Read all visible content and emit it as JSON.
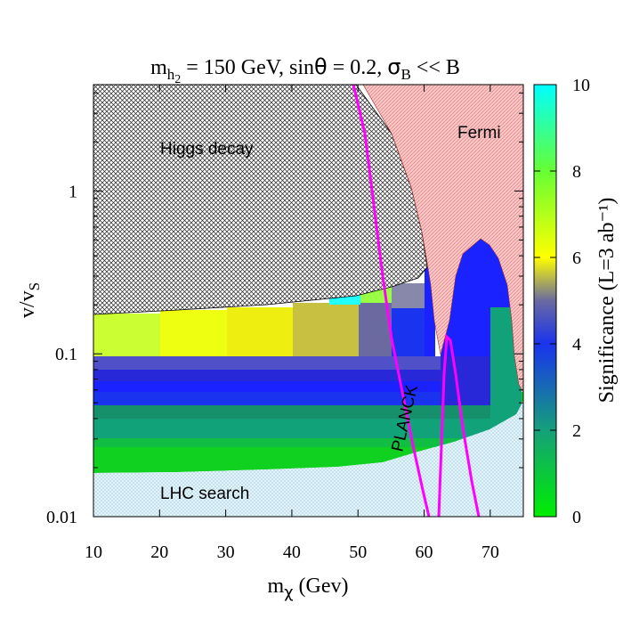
{
  "chart_data": {
    "type": "heatmap",
    "title": {
      "parts": [
        {
          "t": "m"
        },
        {
          "t": "h",
          "sub": true
        },
        {
          "t": "2",
          "subsub": true
        },
        {
          "t": " = 150 GeV, sin"
        },
        {
          "t": "θ",
          "sans": true
        },
        {
          "t": " = 0.2, "
        },
        {
          "t": "σ",
          "sans": true
        },
        {
          "t": "B",
          "sub": true
        },
        {
          "t": " << B"
        }
      ]
    },
    "xlabel": {
      "main": "m",
      "sub": "χ",
      "rest": " (Gev)"
    },
    "ylabel": {
      "main": "v/v",
      "sub": "S"
    },
    "colorbar_label": "Significance (L=3 ab⁻¹)",
    "x_ticks": [
      10,
      20,
      30,
      40,
      50,
      60,
      70
    ],
    "x_tick_labels": [
      "10",
      "20",
      "30",
      "40",
      "50",
      "60",
      "70"
    ],
    "y_ticks": [
      0.01,
      0.1,
      1
    ],
    "y_tick_labels": [
      "0.01",
      "0.1",
      "1"
    ],
    "colorbar_ticks": [
      0,
      2,
      4,
      6,
      8,
      10
    ],
    "colorbar_tick_labels": [
      "0",
      "2",
      "4",
      "6",
      "8",
      "10"
    ],
    "xlim": [
      10,
      75
    ],
    "ylim": [
      0.01,
      4.5
    ],
    "y_scale": "log",
    "color_range": [
      0,
      10
    ],
    "colormap": [
      "#00ee00",
      "#15a07a",
      "#1a33ee",
      "#9a9a58",
      "#ffff00",
      "#66ff33",
      "#00ffff"
    ],
    "regions": {
      "higgs_decay": {
        "label": "Higgs decay",
        "fill": "#ffffff",
        "hatch_color": "#222222"
      },
      "fermi": {
        "label": "Fermi",
        "fill": "#f7c6c6",
        "hatch_color": "#e07070"
      },
      "lhc_search": {
        "label": "LHC search",
        "fill": "#e6f4fa",
        "hatch_color": "#8cc8e0"
      },
      "planck": {
        "label": "PLANCK",
        "color": "#ff00ff"
      }
    },
    "grid": false,
    "legend": "none"
  }
}
